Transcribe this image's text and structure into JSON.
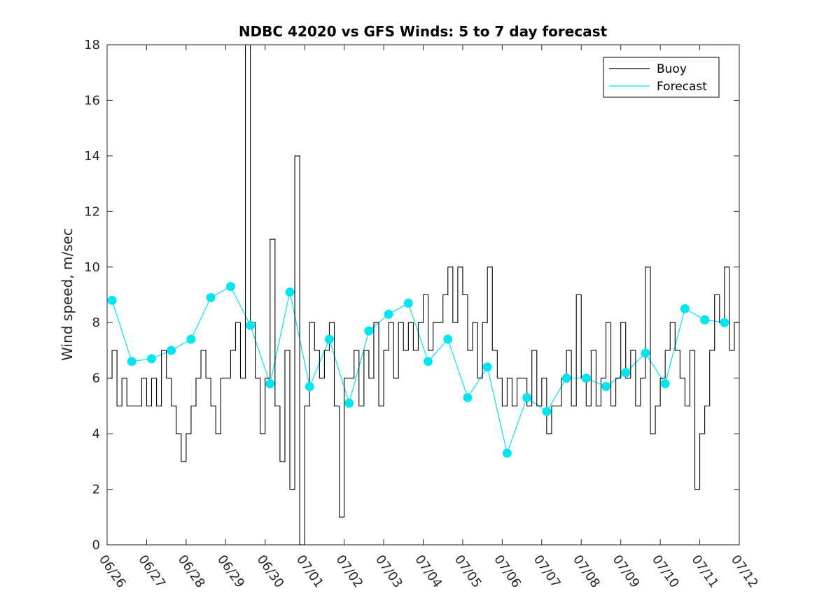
{
  "chart_data": {
    "type": "line",
    "title": "NDBC 42020 vs GFS Winds: 5 to 7 day forecast",
    "xlabel": "",
    "ylabel": "Wind speed, m/sec",
    "ylim": [
      0,
      18
    ],
    "yticks": [
      0,
      2,
      4,
      6,
      8,
      10,
      12,
      14,
      16,
      18
    ],
    "x_ticks": [
      "06/26",
      "06/27",
      "06/28",
      "06/29",
      "06/30",
      "07/01",
      "07/02",
      "07/03",
      "07/04",
      "07/05",
      "07/06",
      "07/07",
      "07/08",
      "07/09",
      "07/10",
      "07/11",
      "07/12"
    ],
    "legend": {
      "placement": "top-right",
      "entries": [
        "Buoy",
        "Forecast"
      ]
    },
    "colors": {
      "buoy": "#000000",
      "forecast": "#00e5ee"
    },
    "series": [
      {
        "name": "Buoy",
        "x": [
          "06/26 00:00",
          "06/26 03:00",
          "06/26 06:00",
          "06/26 09:00",
          "06/26 12:00",
          "06/26 15:00",
          "06/26 18:00",
          "06/26 21:00",
          "06/27 00:00",
          "06/27 03:00",
          "06/27 06:00",
          "06/27 09:00",
          "06/27 12:00",
          "06/27 15:00",
          "06/27 18:00",
          "06/27 21:00",
          "06/28 00:00",
          "06/28 03:00",
          "06/28 06:00",
          "06/28 09:00",
          "06/28 12:00",
          "06/28 15:00",
          "06/28 18:00",
          "06/28 21:00",
          "06/29 00:00",
          "06/29 03:00",
          "06/29 06:00",
          "06/29 09:00",
          "06/29 12:00",
          "06/29 15:00",
          "06/29 18:00",
          "06/29 21:00",
          "06/30 00:00",
          "06/30 03:00",
          "06/30 06:00",
          "06/30 09:00",
          "06/30 12:00",
          "06/30 15:00",
          "06/30 18:00",
          "06/30 21:00",
          "07/01 00:00",
          "07/01 03:00",
          "07/01 06:00",
          "07/01 09:00",
          "07/01 12:00",
          "07/01 15:00",
          "07/01 18:00",
          "07/01 21:00",
          "07/02 00:00",
          "07/02 03:00",
          "07/02 06:00",
          "07/02 09:00",
          "07/02 12:00",
          "07/02 15:00",
          "07/02 18:00",
          "07/02 21:00",
          "07/03 00:00",
          "07/03 03:00",
          "07/03 06:00",
          "07/03 09:00",
          "07/03 12:00",
          "07/03 15:00",
          "07/03 18:00",
          "07/03 21:00",
          "07/04 00:00",
          "07/04 03:00",
          "07/04 06:00",
          "07/04 09:00",
          "07/04 12:00",
          "07/04 15:00",
          "07/04 18:00",
          "07/04 21:00",
          "07/05 00:00",
          "07/05 03:00",
          "07/05 06:00",
          "07/05 09:00",
          "07/05 12:00",
          "07/05 15:00",
          "07/05 18:00",
          "07/05 21:00",
          "07/06 00:00",
          "07/06 03:00",
          "07/06 06:00",
          "07/06 09:00",
          "07/06 12:00",
          "07/06 15:00",
          "07/06 18:00",
          "07/06 21:00",
          "07/07 00:00",
          "07/07 03:00",
          "07/07 06:00",
          "07/07 09:00",
          "07/07 12:00",
          "07/07 15:00",
          "07/07 18:00",
          "07/07 21:00",
          "07/08 00:00",
          "07/08 03:00",
          "07/08 06:00",
          "07/08 09:00",
          "07/08 12:00",
          "07/08 15:00",
          "07/08 18:00",
          "07/08 21:00",
          "07/09 00:00",
          "07/09 03:00",
          "07/09 06:00",
          "07/09 09:00",
          "07/09 12:00",
          "07/09 15:00",
          "07/09 18:00",
          "07/09 21:00",
          "07/10 00:00",
          "07/10 03:00",
          "07/10 06:00",
          "07/10 09:00",
          "07/10 12:00",
          "07/10 15:00",
          "07/10 18:00",
          "07/10 21:00",
          "07/11 00:00",
          "07/11 03:00",
          "07/11 06:00",
          "07/11 09:00",
          "07/11 12:00",
          "07/11 15:00",
          "07/11 18:00",
          "07/11 21:00"
        ],
        "values": [
          6,
          7,
          5,
          6,
          5,
          5,
          5,
          6,
          5,
          6,
          5,
          7,
          6,
          5,
          4,
          3,
          4,
          5,
          6,
          7,
          6,
          5,
          4,
          6,
          6,
          7,
          8,
          6,
          18,
          8,
          6,
          4,
          6,
          11,
          5,
          3,
          7,
          2,
          14,
          0,
          5,
          8,
          7,
          6,
          7,
          8,
          5,
          1,
          6,
          6,
          7,
          5,
          7,
          6,
          8,
          5,
          7,
          8,
          6,
          8,
          7,
          8,
          7,
          8,
          9,
          7,
          8,
          8,
          9,
          10,
          8,
          10,
          9,
          7,
          8,
          6,
          8,
          10,
          7,
          6,
          5,
          6,
          5,
          6,
          6,
          5,
          7,
          5,
          6,
          4,
          5,
          5,
          6,
          7,
          5,
          9,
          6,
          5,
          7,
          5,
          6,
          8,
          5,
          6,
          8,
          6,
          7,
          5,
          6,
          10,
          4,
          5,
          6,
          7,
          8,
          7,
          6,
          5,
          7,
          2,
          4,
          5,
          7,
          9,
          8,
          10,
          7,
          8
        ]
      },
      {
        "name": "Forecast",
        "x": [
          "06/26 03:00",
          "06/26 15:00",
          "06/27 03:00",
          "06/27 15:00",
          "06/28 03:00",
          "06/28 15:00",
          "06/29 03:00",
          "06/29 15:00",
          "06/30 03:00",
          "06/30 15:00",
          "07/01 03:00",
          "07/01 15:00",
          "07/02 03:00",
          "07/02 15:00",
          "07/03 03:00",
          "07/03 15:00",
          "07/04 03:00",
          "07/04 15:00",
          "07/05 03:00",
          "07/05 15:00",
          "07/06 03:00",
          "07/06 15:00",
          "07/07 03:00",
          "07/07 15:00",
          "07/08 03:00",
          "07/08 15:00",
          "07/09 03:00",
          "07/09 15:00",
          "07/10 03:00",
          "07/10 15:00",
          "07/11 03:00",
          "07/11 15:00"
        ],
        "values": [
          8.8,
          6.6,
          6.7,
          7.0,
          7.4,
          8.9,
          9.3,
          7.9,
          5.8,
          9.1,
          5.7,
          7.4,
          5.1,
          7.7,
          8.3,
          8.7,
          6.6,
          7.4,
          5.3,
          6.4,
          3.3,
          5.3,
          4.8,
          6.0,
          6.0,
          5.7,
          6.2,
          6.9,
          5.8,
          8.5,
          8.1,
          8.0
        ]
      }
    ]
  }
}
